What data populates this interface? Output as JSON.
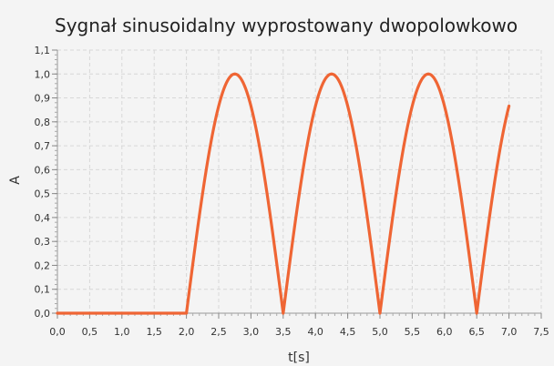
{
  "chart_data": {
    "type": "line",
    "title": "Sygnał sinusoidalny wyprostowany dwopolowkowo",
    "xlabel": "t[s]",
    "ylabel": "A",
    "xlim": [
      0,
      7.5
    ],
    "ylim": [
      0,
      1.1
    ],
    "grid": true,
    "x_ticks": [
      "0,0",
      "0,5",
      "1,0",
      "1,5",
      "2,0",
      "2,5",
      "3,0",
      "3,5",
      "4,0",
      "4,5",
      "5,0",
      "5,5",
      "6,0",
      "6,5",
      "7,0",
      "7,5"
    ],
    "y_ticks": [
      "0,0",
      "0,1",
      "0,2",
      "0,3",
      "0,4",
      "0,5",
      "0,6",
      "0,7",
      "0,8",
      "0,9",
      "1,0",
      "1,1"
    ],
    "series": [
      {
        "color": "#ef6534",
        "points": [
          [
            2.0,
            0.0
          ],
          [
            2.25,
            0.5
          ],
          [
            2.5,
            0.866
          ],
          [
            2.75,
            1.0
          ],
          [
            3.0,
            0.866
          ],
          [
            3.25,
            0.5
          ],
          [
            3.5,
            0.0
          ],
          [
            3.75,
            0.5
          ],
          [
            4.0,
            0.866
          ],
          [
            4.25,
            1.0
          ],
          [
            4.5,
            0.866
          ],
          [
            4.75,
            0.5
          ],
          [
            5.0,
            0.0
          ],
          [
            5.25,
            0.5
          ],
          [
            5.5,
            0.866
          ],
          [
            5.75,
            1.0
          ],
          [
            6.0,
            0.866
          ],
          [
            6.25,
            0.5
          ],
          [
            6.5,
            0.0
          ],
          [
            6.75,
            0.5
          ],
          [
            7.0,
            0.866
          ]
        ]
      }
    ]
  }
}
